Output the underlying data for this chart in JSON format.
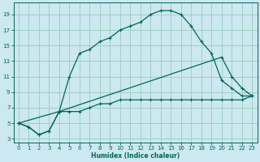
{
  "xlabel": "Humidex (Indice chaleur)",
  "bg_color": "#cce8f0",
  "grid_color": "#99ccbb",
  "line_color": "#006655",
  "xlim": [
    -0.5,
    23.5
  ],
  "ylim": [
    2.5,
    20.5
  ],
  "xticks": [
    0,
    1,
    2,
    3,
    4,
    5,
    6,
    7,
    8,
    9,
    10,
    11,
    12,
    13,
    14,
    15,
    16,
    17,
    18,
    19,
    20,
    21,
    22,
    23
  ],
  "yticks": [
    3,
    5,
    7,
    9,
    11,
    13,
    15,
    17,
    19
  ],
  "line1_x": [
    0,
    1,
    2,
    3,
    4,
    5,
    6,
    7,
    8,
    9,
    10,
    11,
    12,
    13,
    14,
    15,
    16,
    17,
    18,
    19,
    20,
    21,
    22,
    23
  ],
  "line1_y": [
    5,
    4.5,
    3.5,
    4.0,
    6.5,
    11,
    14,
    14.5,
    15.5,
    16,
    17,
    17.5,
    18,
    19,
    19.5,
    19.5,
    19,
    17.5,
    15.5,
    14,
    10.5,
    9.5,
    8.5,
    8.5
  ],
  "line2_x": [
    0,
    1,
    2,
    3,
    4,
    5,
    6,
    7,
    8,
    9,
    10,
    11,
    12,
    13,
    14,
    15,
    16,
    17,
    18,
    19,
    20,
    21,
    22,
    23
  ],
  "line2_y": [
    5,
    4.5,
    3.5,
    4.0,
    6.5,
    6.5,
    6.5,
    7,
    7.5,
    7.5,
    8,
    8,
    8,
    8,
    8,
    8,
    8,
    8,
    8,
    8,
    8,
    8,
    8,
    8.5
  ],
  "line3_x": [
    0,
    4,
    20,
    21,
    22,
    23
  ],
  "line3_y": [
    5,
    6.5,
    13.5,
    11,
    9.5,
    8.5
  ]
}
